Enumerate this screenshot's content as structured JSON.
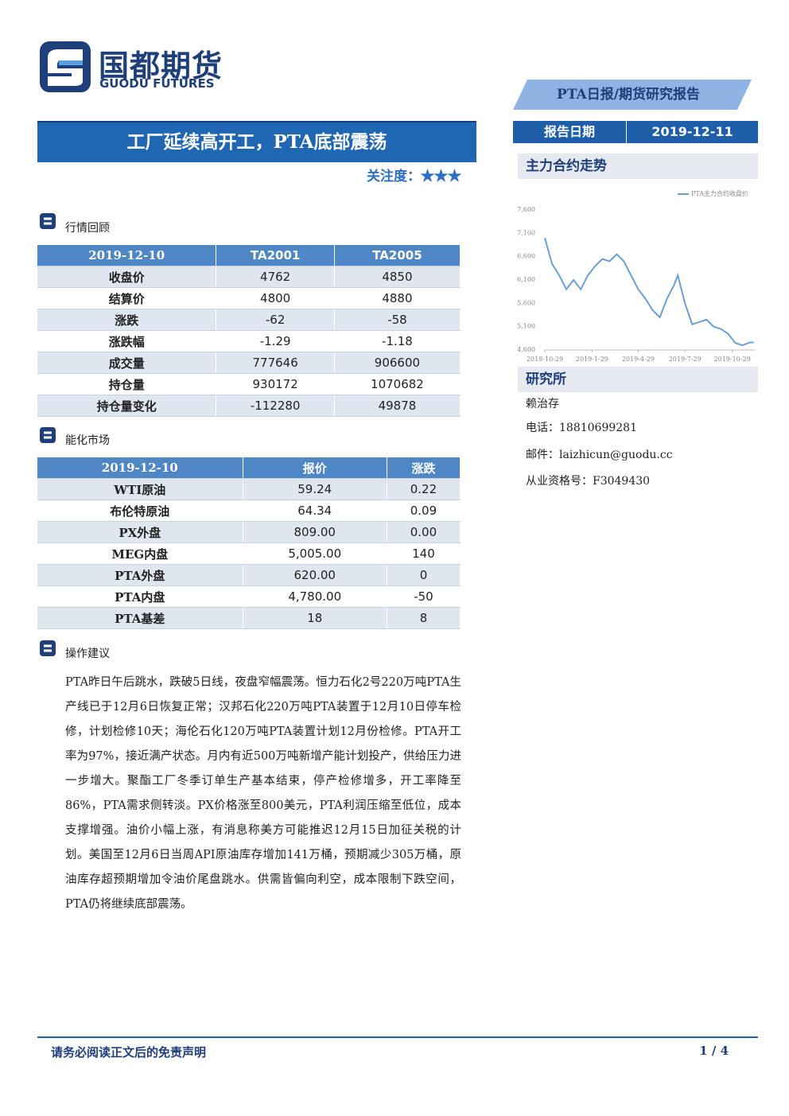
{
  "header": {
    "logo_cn": "国都期货",
    "logo_en": "GUODU FUTURES",
    "report_type": "PTA日报/期货研究报告",
    "date_label": "报告日期",
    "date": "2019-12-11"
  },
  "title": "工厂延续高开工，PTA底部震荡",
  "attention": "关注度：★★★",
  "market_review": {
    "heading": "行情回顾",
    "table": {
      "header": [
        "2019-12-10",
        "TA2001",
        "TA2005"
      ],
      "rows": [
        [
          "收盘价",
          "4762",
          "4850"
        ],
        [
          "结算价",
          "4800",
          "4880"
        ],
        [
          "涨跌",
          "-62",
          "-58"
        ],
        [
          "涨跌幅",
          "-1.29",
          "-1.18"
        ],
        [
          "成交量",
          "777646",
          "906600"
        ],
        [
          "持仓量",
          "930172",
          "1070682"
        ],
        [
          "持仓量变化",
          "-112280",
          "49878"
        ]
      ]
    }
  },
  "energy_market": {
    "heading": "能化市场",
    "table": {
      "header": [
        "2019-12-10",
        "报价",
        "涨跌"
      ],
      "rows": [
        [
          "WTI原油",
          "59.24",
          "0.22"
        ],
        [
          "布伦特原油",
          "64.34",
          "0.09"
        ],
        [
          "PX外盘",
          "809.00",
          "0.00"
        ],
        [
          "MEG内盘",
          "5,005.00",
          "140"
        ],
        [
          "PTA外盘",
          "620.00",
          "0"
        ],
        [
          "PTA内盘",
          "4,780.00",
          "-50"
        ],
        [
          "PTA基差",
          "18",
          "8"
        ]
      ]
    }
  },
  "advice": {
    "heading": "操作建议",
    "text": "PTA昨日午后跳水，跌破5日线，夜盘窄幅震荡。恒力石化2号220万吨PTA生产线已于12月6日恢复正常；汉邦石化220万吨PTA装置于12月10日停车检修，计划检修10天；海伦石化120万吨PTA装置计划12月份检修。PTA开工率为97%，接近满产状态。月内有近500万吨新增产能计划投产，供给压力进一步增大。聚酯工厂冬季订单生产基本结束，停产检修增多，开工率降至86%，PTA需求侧转淡。PX价格涨至800美元，PTA利润压缩至低位，成本支撑增强。油价小幅上涨，有消息称美方可能推迟12月15日加征关税的计划。美国至12月6日当周API原油库存增加141万桶，预期减少305万桶，原油库存超预期增加令油价尾盘跳水。供需皆偏向利空，成本限制下跌空间，PTA仍将继续底部震荡。"
  },
  "sidebar": {
    "chart_heading": "主力合约走势",
    "research_heading": "研究所",
    "analyst": "赖治存",
    "phone": "电话：18810699281",
    "email": "邮件：laizhicun@guodu.cc",
    "license": "从业资格号：F3049430"
  },
  "chart_data": {
    "type": "line",
    "x": [
      "2018-10-29",
      "2018-11-12",
      "2018-11-26",
      "2018-12-10",
      "2018-12-24",
      "2019-01-07",
      "2019-01-21",
      "2019-02-04",
      "2019-02-18",
      "2019-03-04",
      "2019-03-18",
      "2019-04-01",
      "2019-04-15",
      "2019-04-29",
      "2019-05-13",
      "2019-05-27",
      "2019-06-10",
      "2019-06-24",
      "2019-07-08",
      "2019-07-15",
      "2019-07-29",
      "2019-08-12",
      "2019-08-26",
      "2019-09-09",
      "2019-09-23",
      "2019-10-07",
      "2019-10-21",
      "2019-11-04",
      "2019-11-18",
      "2019-12-02",
      "2019-12-10"
    ],
    "series": [
      {
        "name": "PTA主力合约收盘价",
        "color": "#6a9fd4",
        "values": [
          7000,
          6450,
          6200,
          5900,
          6100,
          5900,
          6200,
          6400,
          6550,
          6500,
          6650,
          6500,
          6200,
          5900,
          5700,
          5450,
          5300,
          5700,
          6000,
          6200,
          5600,
          5150,
          5200,
          5250,
          5100,
          5050,
          4950,
          4750,
          4700,
          4760,
          4762
        ]
      }
    ],
    "xlim": [
      "2018-10-29",
      "2019-12-12"
    ],
    "xticks": [
      "2018-10-29",
      "2019-1-29",
      "2019-4-29",
      "2019-7-29",
      "2019-10-29"
    ],
    "ylim": [
      4600,
      7600
    ],
    "yticks": [
      {
        "value": 4600,
        "label": "4,600"
      },
      {
        "value": 5100,
        "label": "5,100"
      },
      {
        "value": 5600,
        "label": "5,600"
      },
      {
        "value": 6100,
        "label": "6,100"
      },
      {
        "value": 6600,
        "label": "6,600"
      },
      {
        "value": 7100,
        "label": "7,100"
      },
      {
        "value": 7600,
        "label": "7,600"
      }
    ],
    "grid": false
  },
  "footer": {
    "disclaimer": "请务必阅读正文后的免责声明",
    "page": "1 / 4"
  }
}
